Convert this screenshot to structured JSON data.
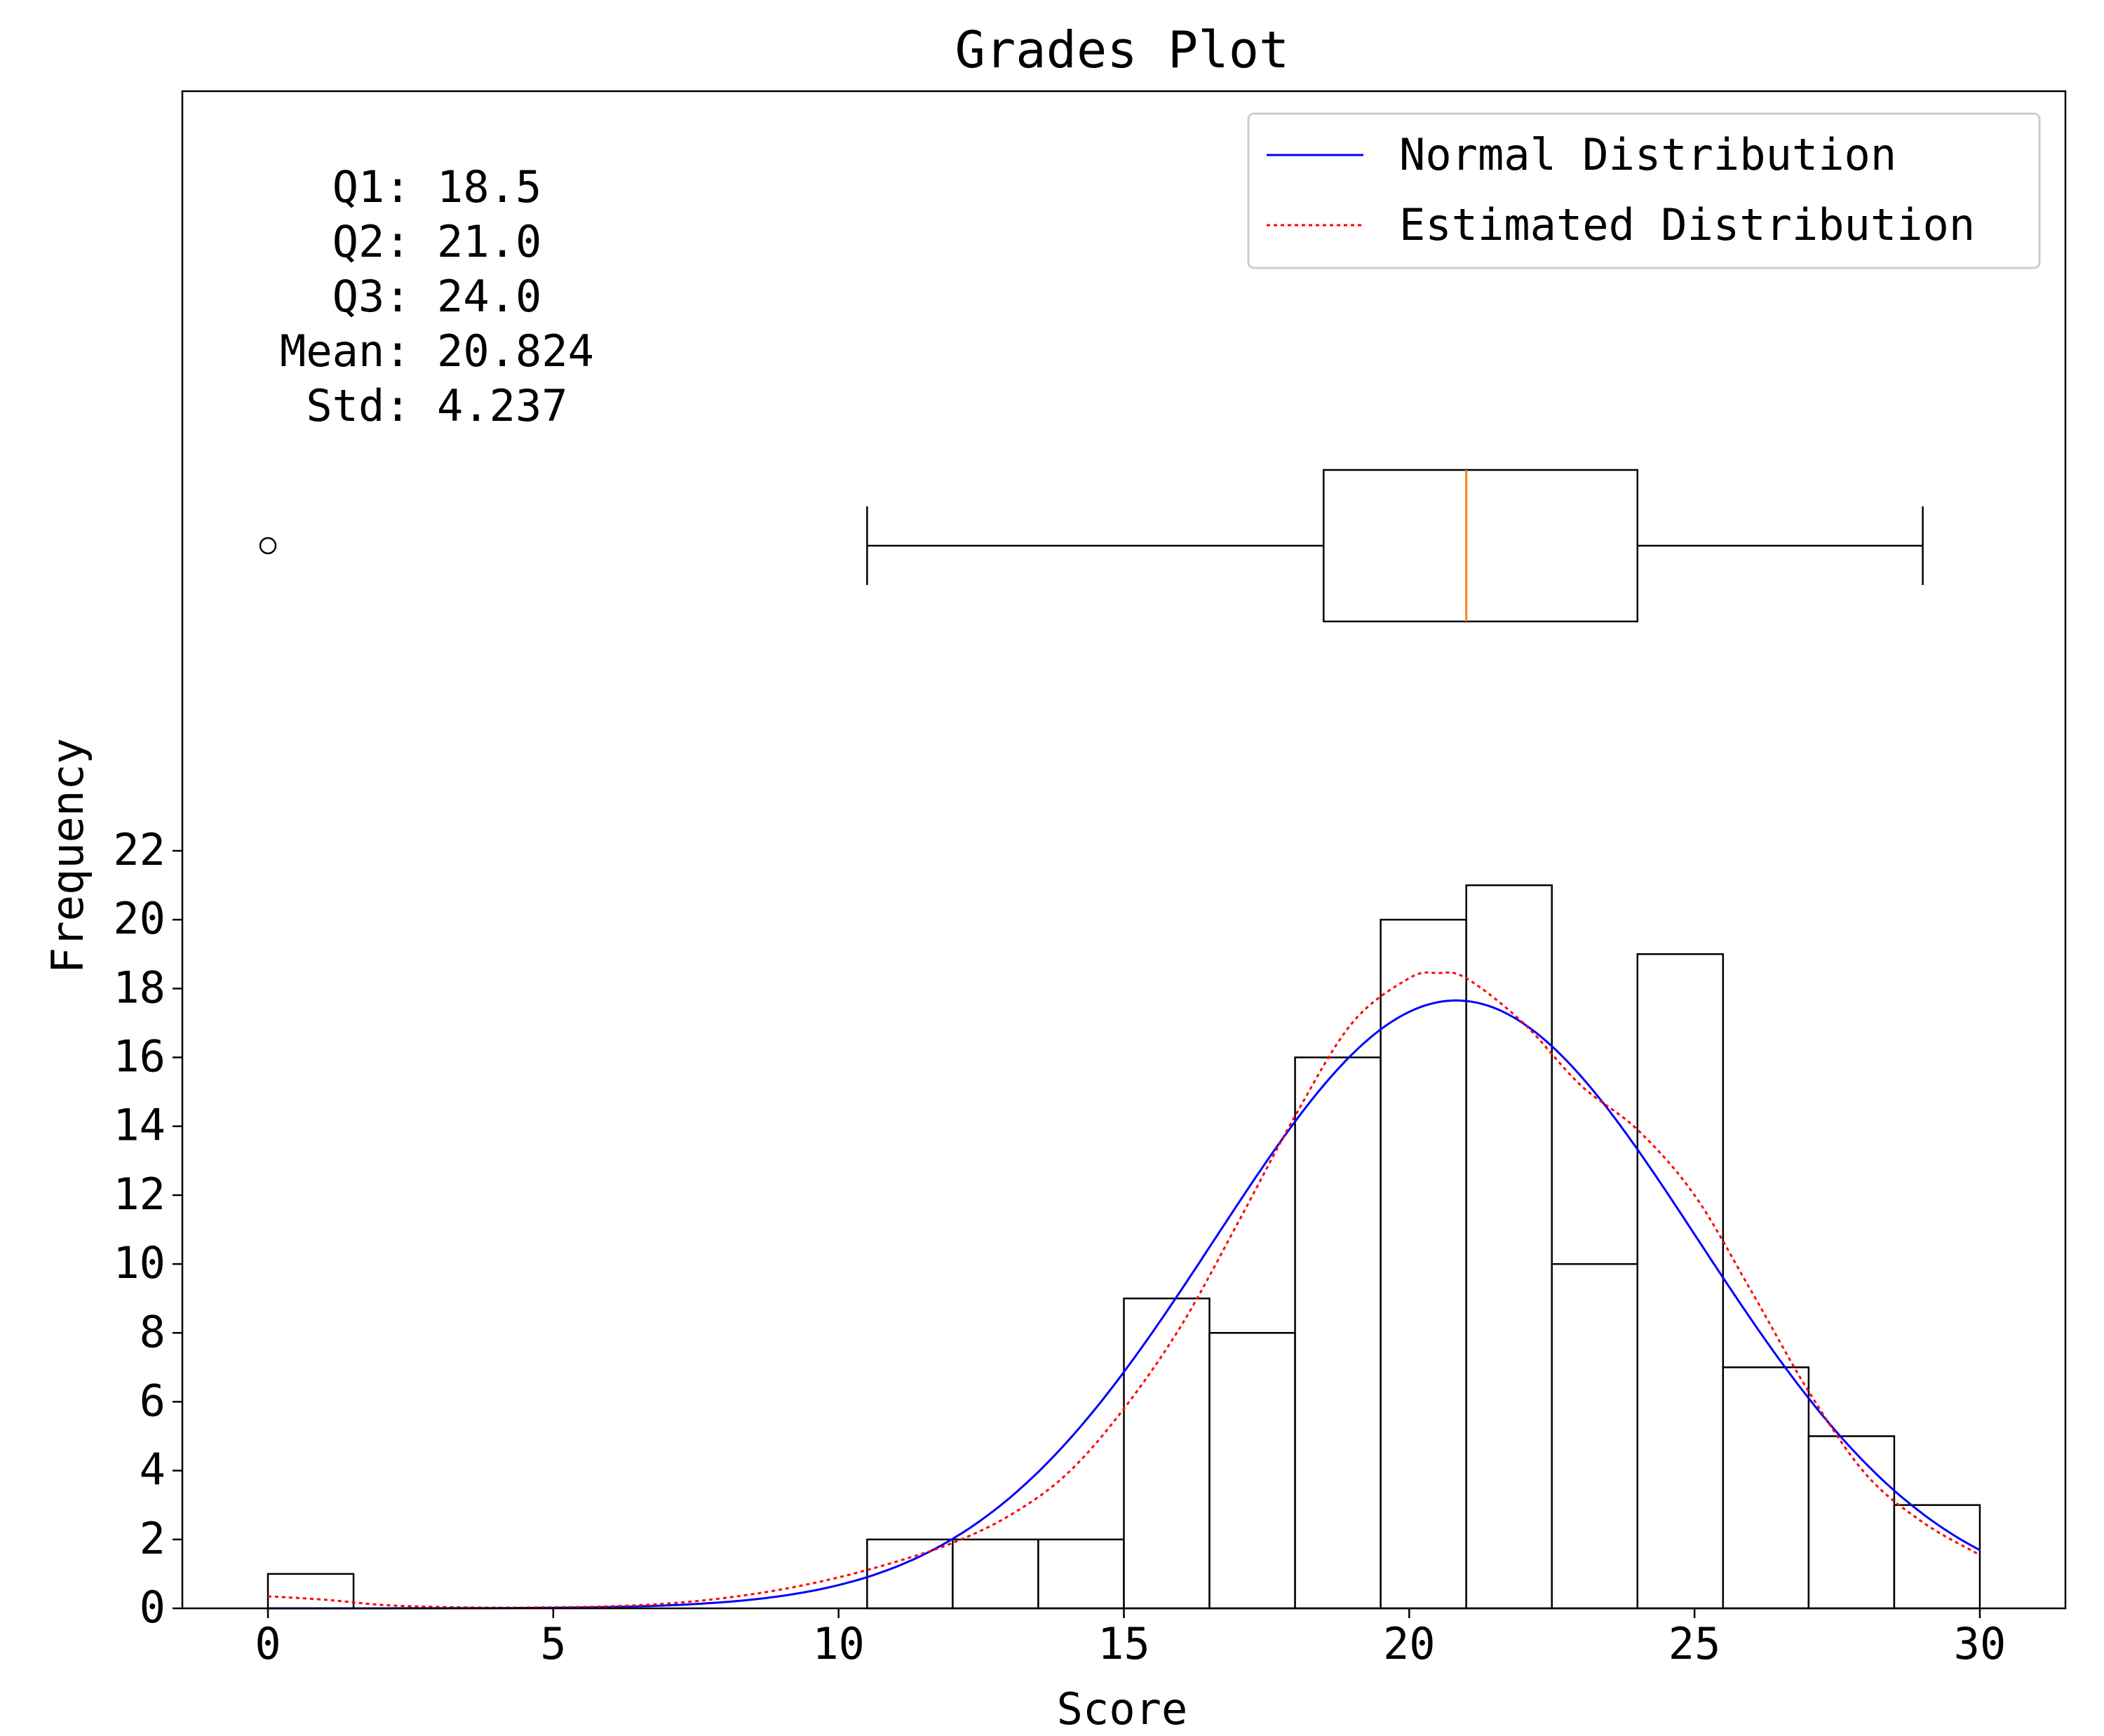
{
  "chart_data": {
    "type": "bar",
    "title": "Grades Plot",
    "xlabel": "Score",
    "ylabel": "Frequency",
    "xlim": [
      -1.5,
      31.5
    ],
    "ylim": [
      0,
      22
    ],
    "x_ticks": [
      0,
      5,
      10,
      15,
      20,
      25,
      30
    ],
    "y_ticks": [
      0,
      2,
      4,
      6,
      8,
      10,
      12,
      14,
      16,
      18,
      20,
      22
    ],
    "grid": false,
    "histogram": {
      "bin_edges": [
        0,
        1.5,
        3,
        4.5,
        6,
        7.5,
        9,
        10.5,
        12,
        13.5,
        15,
        16.5,
        18,
        19.5,
        21,
        22.5,
        24,
        25.5,
        27,
        28.5,
        30
      ],
      "counts": [
        1,
        0,
        0,
        0,
        0,
        0,
        0,
        2,
        2,
        2,
        9,
        8,
        16,
        20,
        21,
        10,
        19,
        7,
        5,
        3
      ],
      "color": "#000000"
    },
    "boxplot": {
      "whisker_low": 10.5,
      "q1": 18.5,
      "median": 21.0,
      "q3": 24.0,
      "whisker_high": 29.0,
      "outliers": [
        0
      ],
      "median_color": "#ff7f0e"
    },
    "series": [
      {
        "name": "Normal Distribution",
        "kind": "normal",
        "mean": 20.824,
        "std": 4.237,
        "scale": 187.5,
        "color": "#0000ff",
        "style": "solid"
      },
      {
        "name": "Estimated Distribution",
        "kind": "kde",
        "color": "#ff0000",
        "style": "dotted",
        "x": [
          0,
          1,
          2,
          3,
          4,
          5,
          6,
          7,
          8,
          9,
          10,
          11,
          12,
          13,
          14,
          15,
          16,
          17,
          18,
          19,
          20,
          20.5,
          21,
          22,
          23,
          24,
          25,
          26,
          27,
          28,
          29,
          30
        ],
        "y": [
          0.35,
          0.25,
          0.1,
          0.04,
          0.02,
          0.03,
          0.06,
          0.14,
          0.3,
          0.55,
          0.9,
          1.35,
          1.9,
          2.7,
          3.9,
          5.8,
          8.2,
          11.2,
          14.3,
          17.0,
          18.3,
          18.45,
          18.3,
          17.0,
          15.2,
          13.9,
          12.0,
          9.2,
          6.3,
          3.9,
          2.5,
          1.55
        ]
      }
    ],
    "legend": {
      "placement": "top-right",
      "entries": [
        "Normal Distribution",
        "Estimated Distribution"
      ]
    },
    "annotations": {
      "stats_lines": [
        "Q1: 18.5",
        "Q2: 21.0",
        "Q3: 24.0",
        "Mean: 20.824",
        "Std: 4.237"
      ]
    }
  }
}
